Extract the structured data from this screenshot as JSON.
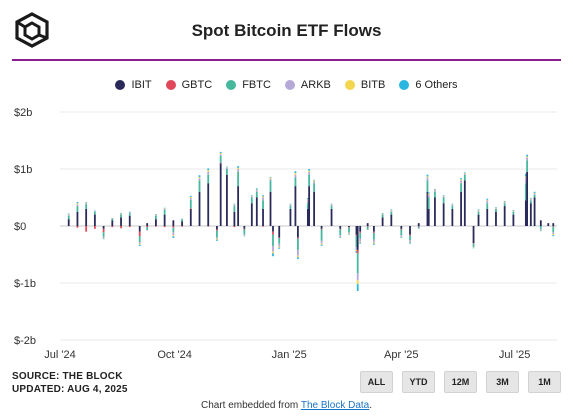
{
  "header": {
    "title": "Spot Bitcoin ETF Flows",
    "logo_icon": "theblock-cube-logo"
  },
  "colors": {
    "accent_line": "#8a1d8f",
    "IBIT": "#2a2a5a",
    "GBTC": "#e0485a",
    "FBTC": "#45b89e",
    "ARKB": "#b5a9d8",
    "BITB": "#f3d64e",
    "6 Others": "#29b6e0"
  },
  "chart_data": {
    "type": "bar",
    "stacked": true,
    "title": "Spot Bitcoin ETF Flows",
    "series_names": [
      "IBIT",
      "GBTC",
      "FBTC",
      "ARKB",
      "BITB",
      "6 Others"
    ],
    "x_tick_labels": [
      "Jul '24",
      "Oct '24",
      "Jan '25",
      "Apr '25",
      "Jul '25"
    ],
    "x_ticks": [
      {
        "label": "Jul '24",
        "date": "2024-07-01"
      },
      {
        "label": "Oct '24",
        "date": "2024-10-01"
      },
      {
        "label": "Jan '25",
        "date": "2025-01-01"
      },
      {
        "label": "Apr '25",
        "date": "2025-04-01"
      },
      {
        "label": "Jul '25",
        "date": "2025-07-01"
      }
    ],
    "y_tick_labels": [
      "$2b",
      "$1b",
      "$0",
      "$-1b",
      "$-2b"
    ],
    "y_ticks": [
      2,
      1,
      0,
      -1,
      -2
    ],
    "ylim": [
      -2,
      2
    ],
    "y_unit": "$b",
    "grid": true,
    "legend_position": "top",
    "x_range": [
      "2024-07-01",
      "2025-08-04"
    ],
    "daily_flows": [
      {
        "date": "2024-07-08",
        "values": [
          0.12,
          0,
          0.06,
          0.02,
          0.01,
          0.01
        ]
      },
      {
        "date": "2024-07-15",
        "values": [
          0.25,
          -0.03,
          0.1,
          0.03,
          0.02,
          0.02
        ]
      },
      {
        "date": "2024-07-22",
        "values": [
          0.3,
          -0.1,
          0.08,
          0.02,
          0.01,
          0.01
        ]
      },
      {
        "date": "2024-07-29",
        "values": [
          0.2,
          -0.05,
          0.05,
          0.01,
          0,
          0.01
        ]
      },
      {
        "date": "2024-08-05",
        "values": [
          -0.05,
          -0.06,
          -0.08,
          -0.02,
          -0.01,
          -0.01
        ]
      },
      {
        "date": "2024-08-12",
        "values": [
          0.1,
          -0.02,
          0.03,
          0.01,
          0,
          0
        ]
      },
      {
        "date": "2024-08-19",
        "values": [
          0.15,
          -0.04,
          0.05,
          0.01,
          0.01,
          0.01
        ]
      },
      {
        "date": "2024-08-26",
        "values": [
          0.18,
          -0.02,
          0.04,
          0.02,
          0,
          0.01
        ]
      },
      {
        "date": "2024-09-03",
        "values": [
          -0.1,
          -0.08,
          -0.1,
          -0.03,
          -0.02,
          -0.02
        ]
      },
      {
        "date": "2024-09-09",
        "values": [
          0.05,
          -0.02,
          -0.05,
          -0.01,
          0,
          0
        ]
      },
      {
        "date": "2024-09-16",
        "values": [
          0.12,
          -0.01,
          0.06,
          0.01,
          0.01,
          0.01
        ]
      },
      {
        "date": "2024-09-23",
        "values": [
          0.2,
          -0.02,
          0.08,
          0.02,
          0.01,
          0.01
        ]
      },
      {
        "date": "2024-09-30",
        "values": [
          0.1,
          -0.03,
          -0.08,
          -0.05,
          -0.02,
          -0.03
        ]
      },
      {
        "date": "2024-10-07",
        "values": [
          0.08,
          -0.01,
          0.04,
          0.01,
          0,
          0
        ]
      },
      {
        "date": "2024-10-14",
        "values": [
          0.3,
          0.01,
          0.15,
          0.03,
          0.02,
          0.02
        ]
      },
      {
        "date": "2024-10-21",
        "values": [
          0.6,
          0,
          0.2,
          0.04,
          0.02,
          0.03
        ]
      },
      {
        "date": "2024-10-28",
        "values": [
          0.75,
          -0.01,
          0.15,
          0.05,
          0.03,
          0.03
        ]
      },
      {
        "date": "2024-11-04",
        "values": [
          -0.06,
          -0.02,
          -0.12,
          -0.02,
          -0.02,
          -0.02
        ]
      },
      {
        "date": "2024-11-07",
        "values": [
          1.1,
          0.01,
          0.12,
          0.03,
          0.02,
          0.02
        ]
      },
      {
        "date": "2024-11-12",
        "values": [
          0.9,
          0,
          0.1,
          0.02,
          0.01,
          0.01
        ]
      },
      {
        "date": "2024-11-18",
        "values": [
          0.25,
          -0.02,
          0.1,
          0.02,
          0.01,
          0.01
        ]
      },
      {
        "date": "2024-11-21",
        "values": [
          0.7,
          0,
          0.25,
          0.05,
          0.02,
          0.03
        ]
      },
      {
        "date": "2024-11-26",
        "values": [
          -0.05,
          -0.01,
          -0.08,
          -0.02,
          -0.01,
          -0.01
        ]
      },
      {
        "date": "2024-12-02",
        "values": [
          0.4,
          0,
          0.1,
          0.02,
          0.01,
          0.01
        ]
      },
      {
        "date": "2024-12-06",
        "values": [
          0.5,
          0,
          0.1,
          0.03,
          0.01,
          0.02
        ]
      },
      {
        "date": "2024-12-11",
        "values": [
          0.3,
          -0.01,
          0.15,
          0.05,
          0.02,
          0.02
        ]
      },
      {
        "date": "2024-12-17",
        "values": [
          0.6,
          0,
          0.2,
          0.03,
          0.02,
          0.01
        ]
      },
      {
        "date": "2024-12-19",
        "values": [
          -0.1,
          -0.05,
          -0.2,
          -0.1,
          -0.03,
          -0.05
        ]
      },
      {
        "date": "2024-12-24",
        "values": [
          -0.2,
          -0.01,
          -0.1,
          -0.05,
          -0.02,
          -0.02
        ]
      },
      {
        "date": "2025-01-02",
        "values": [
          0.3,
          0,
          0.05,
          0.02,
          0.01,
          0.01
        ]
      },
      {
        "date": "2025-01-06",
        "values": [
          0.7,
          0,
          0.15,
          0.05,
          0.03,
          0.03
        ]
      },
      {
        "date": "2025-01-08",
        "values": [
          -0.2,
          -0.02,
          -0.2,
          -0.1,
          -0.03,
          -0.03
        ]
      },
      {
        "date": "2025-01-16",
        "values": [
          0.3,
          0,
          0.1,
          0.05,
          0.02,
          0.02
        ]
      },
      {
        "date": "2025-01-17",
        "values": [
          0.7,
          0,
          0.2,
          0.05,
          0.02,
          0.03
        ]
      },
      {
        "date": "2025-01-21",
        "values": [
          0.6,
          0,
          0.15,
          0.03,
          0.02,
          0.01
        ]
      },
      {
        "date": "2025-01-27",
        "values": [
          -0.05,
          -0.01,
          -0.2,
          -0.05,
          -0.02,
          -0.02
        ]
      },
      {
        "date": "2025-02-04",
        "values": [
          0.3,
          0,
          0.05,
          0.02,
          0.01,
          0.01
        ]
      },
      {
        "date": "2025-02-11",
        "values": [
          -0.05,
          -0.01,
          -0.1,
          -0.03,
          -0.01,
          -0.01
        ]
      },
      {
        "date": "2025-02-18",
        "values": [
          -0.02,
          -0.01,
          -0.08,
          -0.02,
          -0.01,
          -0.01
        ]
      },
      {
        "date": "2025-02-24",
        "values": [
          -0.15,
          -0.02,
          -0.2,
          -0.05,
          -0.02,
          -0.03
        ]
      },
      {
        "date": "2025-02-25",
        "values": [
          -0.42,
          -0.06,
          -0.35,
          -0.12,
          -0.07,
          -0.12
        ]
      },
      {
        "date": "2025-02-27",
        "values": [
          -0.1,
          -0.02,
          -0.1,
          -0.05,
          -0.02,
          -0.02
        ]
      },
      {
        "date": "2025-03-05",
        "values": [
          0.05,
          -0.01,
          -0.05,
          -0.01,
          0,
          0
        ]
      },
      {
        "date": "2025-03-10",
        "values": [
          -0.1,
          -0.02,
          -0.12,
          -0.05,
          -0.02,
          -0.02
        ]
      },
      {
        "date": "2025-03-17",
        "values": [
          0.15,
          0,
          0.05,
          0.01,
          0.01,
          0.01
        ]
      },
      {
        "date": "2025-03-24",
        "values": [
          0.2,
          0,
          0.05,
          0.02,
          0.01,
          0.01
        ]
      },
      {
        "date": "2025-04-01",
        "values": [
          -0.05,
          -0.01,
          -0.1,
          -0.03,
          -0.01,
          -0.01
        ]
      },
      {
        "date": "2025-04-08",
        "values": [
          -0.15,
          -0.02,
          -0.08,
          -0.03,
          -0.01,
          -0.02
        ]
      },
      {
        "date": "2025-04-15",
        "values": [
          0.05,
          -0.01,
          -0.03,
          -0.01,
          0,
          0
        ]
      },
      {
        "date": "2025-04-22",
        "values": [
          0.6,
          0,
          0.2,
          0.05,
          0.02,
          0.03
        ]
      },
      {
        "date": "2025-04-23",
        "values": [
          0.3,
          0,
          0.2,
          0.05,
          0.02,
          0.02
        ]
      },
      {
        "date": "2025-04-28",
        "values": [
          0.5,
          0,
          0.1,
          0.03,
          0.01,
          0.01
        ]
      },
      {
        "date": "2025-05-05",
        "values": [
          0.4,
          0,
          0.1,
          0.02,
          0.01,
          0.01
        ]
      },
      {
        "date": "2025-05-12",
        "values": [
          0.3,
          0,
          0.05,
          0.02,
          0.01,
          0.01
        ]
      },
      {
        "date": "2025-05-19",
        "values": [
          0.6,
          0,
          0.15,
          0.05,
          0.02,
          0.02
        ]
      },
      {
        "date": "2025-05-22",
        "values": [
          0.8,
          0,
          0.1,
          0.02,
          0.01,
          0.01
        ]
      },
      {
        "date": "2025-05-29",
        "values": [
          -0.3,
          -0.01,
          -0.05,
          -0.01,
          -0.01,
          -0.01
        ]
      },
      {
        "date": "2025-06-02",
        "values": [
          0.2,
          0,
          0.05,
          0.02,
          0.01,
          0.01
        ]
      },
      {
        "date": "2025-06-09",
        "values": [
          0.3,
          0,
          0.1,
          0.05,
          0.01,
          0.02
        ]
      },
      {
        "date": "2025-06-16",
        "values": [
          0.25,
          0,
          0.05,
          0.01,
          0.01,
          0.01
        ]
      },
      {
        "date": "2025-06-23",
        "values": [
          0.35,
          0,
          0.05,
          0.02,
          0.01,
          0.01
        ]
      },
      {
        "date": "2025-06-30",
        "values": [
          0.2,
          0,
          0.05,
          0.01,
          0.01,
          0.01
        ]
      },
      {
        "date": "2025-07-10",
        "values": [
          0.45,
          0,
          0.3,
          0.1,
          0.02,
          0.05
        ]
      },
      {
        "date": "2025-07-11",
        "values": [
          0.95,
          0,
          0.2,
          0.05,
          0.02,
          0.03
        ]
      },
      {
        "date": "2025-07-14",
        "values": [
          0.4,
          0,
          0.05,
          0.02,
          0.01,
          0.01
        ]
      },
      {
        "date": "2025-07-17",
        "values": [
          0.5,
          0,
          0.05,
          0.02,
          0.01,
          0.02
        ]
      },
      {
        "date": "2025-07-22",
        "values": [
          0.1,
          0,
          -0.05,
          -0.02,
          -0.01,
          -0.01
        ]
      },
      {
        "date": "2025-07-28",
        "values": [
          0.05,
          0,
          0,
          0,
          0,
          0
        ]
      },
      {
        "date": "2025-08-01",
        "values": [
          0.05,
          -0.01,
          -0.1,
          -0.03,
          -0.02,
          -0.02
        ]
      }
    ]
  },
  "footer": {
    "source": "SOURCE: THE BLOCK",
    "updated": "UPDATED: AUG 4, 2025",
    "embed_prefix": "Chart embedded from",
    "embed_link": "The Block Data",
    "embed_suffix": "."
  },
  "range_buttons": [
    "ALL",
    "YTD",
    "12M",
    "3M",
    "1M"
  ]
}
